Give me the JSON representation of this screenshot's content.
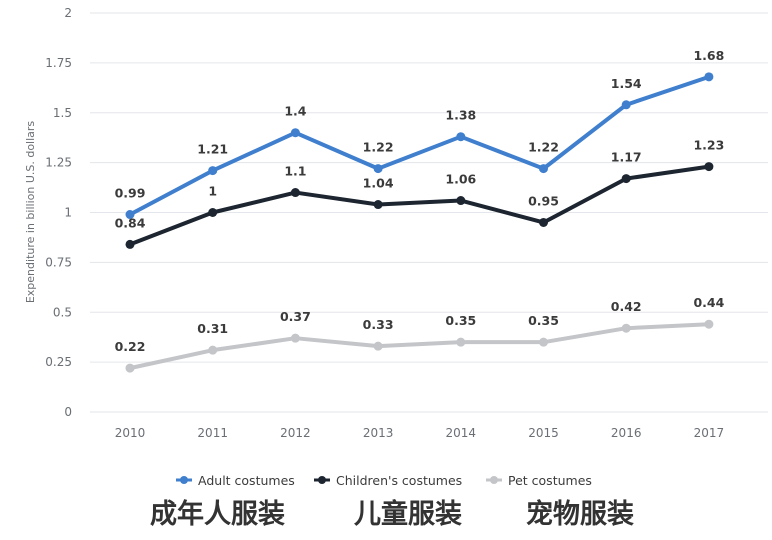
{
  "chart_data": {
    "type": "line",
    "ylabel": "Expenditure in billion U.S. dollars",
    "xlabel": "",
    "ylim": [
      0,
      2
    ],
    "yticks": [
      "0",
      "0.25",
      "0.5",
      "0.75",
      "1",
      "1.25",
      "1.5",
      "1.75",
      "2"
    ],
    "grid": true,
    "legend_position": "bottom-center",
    "categories": [
      "2010",
      "2011",
      "2012",
      "2013",
      "2014",
      "2015",
      "2016",
      "2017"
    ],
    "series": [
      {
        "name": "Adult costumes",
        "color": "#3f7fce",
        "values": [
          0.99,
          1.21,
          1.4,
          1.22,
          1.38,
          1.22,
          1.54,
          1.68
        ],
        "labels": [
          "0.99",
          "1.21",
          "1.4",
          "1.22",
          "1.38",
          "1.22",
          "1.54",
          "1.68"
        ]
      },
      {
        "name": "Children's costumes",
        "color": "#1c2530",
        "values": [
          0.84,
          1.0,
          1.1,
          1.04,
          1.06,
          0.95,
          1.17,
          1.23
        ],
        "labels": [
          "0.84",
          "1",
          "1.1",
          "1.04",
          "1.06",
          "0.95",
          "1.17",
          "1.23"
        ]
      },
      {
        "name": "Pet costumes",
        "color": "#c3c5c8",
        "values": [
          0.22,
          0.31,
          0.37,
          0.33,
          0.35,
          0.35,
          0.42,
          0.44
        ],
        "labels": [
          "0.22",
          "0.31",
          "0.37",
          "0.33",
          "0.35",
          "0.35",
          "0.42",
          "0.44"
        ]
      }
    ]
  },
  "captions": {
    "adult": "成年人服装",
    "children": "儿童服装",
    "pet": "宠物服装"
  }
}
